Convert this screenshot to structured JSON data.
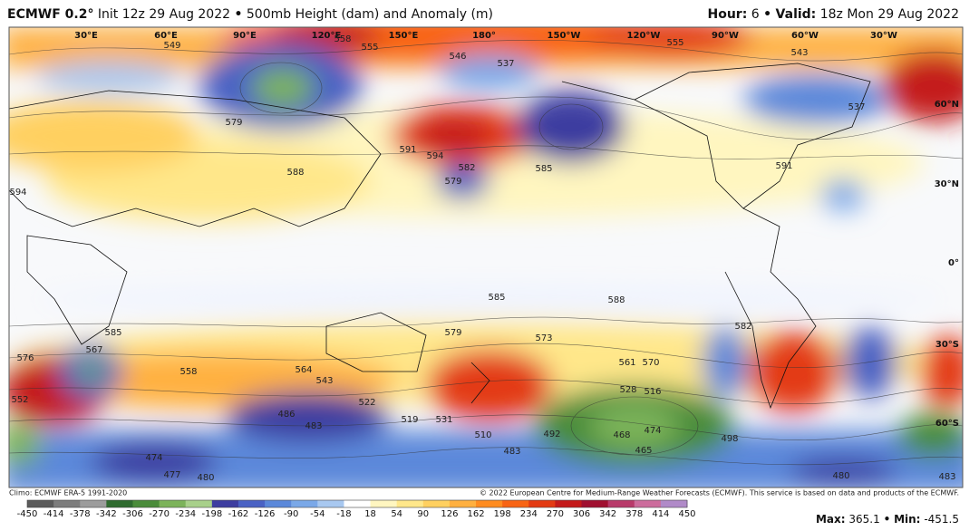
{
  "header": {
    "model": "ECMWF 0.2°",
    "init": "Init 12z 29 Aug 2022",
    "separator": "•",
    "product": "500mb Height (dam) and Anomaly (m)",
    "hour_label": "Hour:",
    "hour": "6",
    "valid_label": "Valid:",
    "valid": "18z Mon 29 Aug 2022"
  },
  "longitudes": [
    "30°E",
    "60°E",
    "90°E",
    "120°E",
    "150°E",
    "180°",
    "150°W",
    "120°W",
    "90°W",
    "60°W",
    "30°W"
  ],
  "latitudes": [
    "60°N",
    "30°N",
    "0°",
    "30°S",
    "60°S"
  ],
  "contour_labels": [
    "549",
    "558",
    "555",
    "546",
    "537",
    "555",
    "543",
    "537",
    "579",
    "591",
    "594",
    "582",
    "579",
    "585",
    "588",
    "591",
    "594",
    "585",
    "585",
    "588",
    "582",
    "576",
    "567",
    "552",
    "558",
    "564",
    "543",
    "579",
    "573",
    "570",
    "561",
    "528",
    "516",
    "486",
    "483",
    "522",
    "519",
    "531",
    "510",
    "492",
    "474",
    "468",
    "465",
    "477",
    "480",
    "474",
    "483",
    "498",
    "480",
    "483"
  ],
  "footer": {
    "climo": "Climo: ECMWF ERA-5 1991-2020",
    "copyright": "© 2022 European Centre for Medium-Range Weather Forecasts (ECMWF). This service is based on data and products of the ECMWF."
  },
  "colorbar": {
    "ticks": [
      -450,
      -414,
      -378,
      -342,
      -306,
      -270,
      -234,
      -198,
      -162,
      -126,
      -90,
      -54,
      -18,
      18,
      54,
      90,
      126,
      162,
      198,
      234,
      270,
      306,
      342,
      378,
      414,
      450
    ],
    "colors": [
      "#5a5a5a",
      "#7c7c7c",
      "#9c9c9c",
      "#2f6b2f",
      "#4a8c3a",
      "#7cb35a",
      "#a8d08a",
      "#3d3da0",
      "#4a62c4",
      "#5b88da",
      "#7aa8e8",
      "#a8c8f0",
      "#ffffff",
      "#fff6c0",
      "#ffe78a",
      "#ffd060",
      "#ffb040",
      "#ff8c20",
      "#f86414",
      "#e33a12",
      "#c41a1a",
      "#a01030",
      "#b83a6a",
      "#cc6c9c",
      "#b08ac8"
    ]
  },
  "stats": {
    "max_label": "Max:",
    "max": 365.1,
    "separator": "•",
    "min_label": "Min:",
    "min": -451.5
  }
}
